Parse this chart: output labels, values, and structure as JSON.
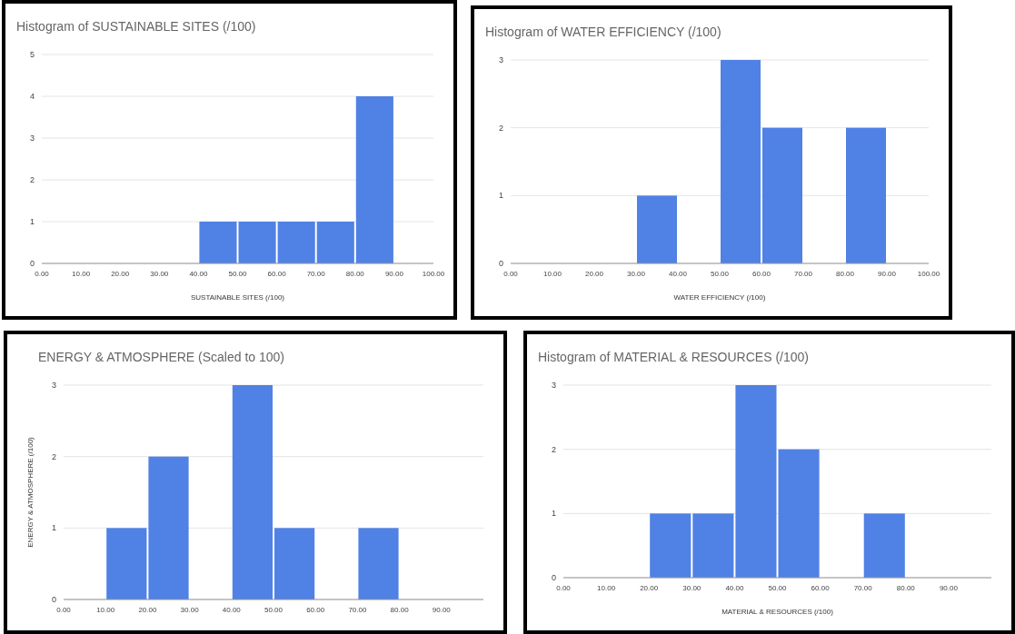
{
  "chart_data": [
    {
      "type": "histogram",
      "title": "Histogram of SUSTAINABLE SITES (/100)",
      "xlabel": "SUSTAINABLE SITES (/100)",
      "bins": [
        0,
        10,
        20,
        30,
        40,
        50,
        60,
        70,
        80,
        90,
        100
      ],
      "values": [
        0,
        0,
        0,
        0,
        1,
        1,
        1,
        1,
        4,
        0
      ],
      "color": "#5081e4",
      "xlim": [
        0,
        100
      ],
      "xticks": [
        {
          "value": 0,
          "label": "0.00"
        },
        {
          "value": 10,
          "label": "10.00"
        },
        {
          "value": 20,
          "label": "20.00"
        },
        {
          "value": 30,
          "label": "30.00"
        },
        {
          "value": 40,
          "label": "40.00"
        },
        {
          "value": 50,
          "label": "50.00"
        },
        {
          "value": 60,
          "label": "60.00"
        },
        {
          "value": 70,
          "label": "70.00"
        },
        {
          "value": 80,
          "label": "80.00"
        },
        {
          "value": 90,
          "label": "90.00"
        },
        {
          "value": 100,
          "label": "100.00"
        }
      ],
      "ylim": [
        0,
        5
      ],
      "yticks": [
        0,
        1,
        2,
        3,
        4,
        5
      ],
      "grid": "y"
    },
    {
      "type": "histogram",
      "title": "Histogram of WATER EFFICIENCY (/100)",
      "xlabel": "WATER EFFICIENCY (/100)",
      "bins": [
        0,
        10,
        20,
        30,
        40,
        50,
        60,
        70,
        80,
        90,
        100
      ],
      "values": [
        0,
        0,
        0,
        1,
        0,
        3,
        2,
        0,
        2,
        0
      ],
      "color": "#5081e4",
      "xlim": [
        0,
        100
      ],
      "xticks": [
        {
          "value": 0,
          "label": "0.00"
        },
        {
          "value": 10,
          "label": "10.00"
        },
        {
          "value": 20,
          "label": "20.00"
        },
        {
          "value": 30,
          "label": "30.00"
        },
        {
          "value": 40,
          "label": "40.00"
        },
        {
          "value": 50,
          "label": "50.00"
        },
        {
          "value": 60,
          "label": "60.00"
        },
        {
          "value": 70,
          "label": "70.00"
        },
        {
          "value": 80,
          "label": "80.00"
        },
        {
          "value": 90,
          "label": "90.00"
        },
        {
          "value": 100,
          "label": "100.00"
        }
      ],
      "ylim": [
        0,
        3
      ],
      "yticks": [
        0,
        1,
        2,
        3
      ],
      "grid": "y"
    },
    {
      "type": "histogram",
      "title": "ENERGY & ATMOSPHERE (Scaled to 100)",
      "ylabel": "ENERGY & ATMOSPHERE (/100)",
      "bins": [
        0,
        10,
        20,
        30,
        40,
        50,
        60,
        70,
        80,
        90,
        100
      ],
      "values": [
        0,
        1,
        2,
        0,
        3,
        1,
        0,
        1,
        0,
        0
      ],
      "color": "#5081e4",
      "xlim": [
        0,
        100
      ],
      "xticks": [
        {
          "value": 0,
          "label": "0.00"
        },
        {
          "value": 10,
          "label": "10.00"
        },
        {
          "value": 20,
          "label": "20.00"
        },
        {
          "value": 30,
          "label": "30.00"
        },
        {
          "value": 40,
          "label": "40.00"
        },
        {
          "value": 50,
          "label": "50.00"
        },
        {
          "value": 60,
          "label": "60.00"
        },
        {
          "value": 70,
          "label": "70.00"
        },
        {
          "value": 80,
          "label": "80.00"
        },
        {
          "value": 90,
          "label": "90.00"
        }
      ],
      "ylim": [
        0,
        3
      ],
      "yticks": [
        0,
        1,
        2,
        3
      ],
      "grid": "y"
    },
    {
      "type": "histogram",
      "title": "Histogram of MATERIAL & RESOURCES (/100)",
      "xlabel": "MATERIAL & RESOURCES (/100)",
      "bins": [
        0,
        10,
        20,
        30,
        40,
        50,
        60,
        70,
        80,
        90,
        100
      ],
      "values": [
        0,
        0,
        1,
        1,
        3,
        2,
        0,
        1,
        0,
        0
      ],
      "color": "#5081e4",
      "xlim": [
        0,
        100
      ],
      "xticks": [
        {
          "value": 0,
          "label": "0.00"
        },
        {
          "value": 10,
          "label": "10.00"
        },
        {
          "value": 20,
          "label": "20.00"
        },
        {
          "value": 30,
          "label": "30.00"
        },
        {
          "value": 40,
          "label": "40.00"
        },
        {
          "value": 50,
          "label": "50.00"
        },
        {
          "value": 60,
          "label": "60.00"
        },
        {
          "value": 70,
          "label": "70.00"
        },
        {
          "value": 80,
          "label": "80.00"
        },
        {
          "value": 90,
          "label": "90.00"
        }
      ],
      "ylim": [
        0,
        3
      ],
      "yticks": [
        0,
        1,
        2,
        3
      ],
      "grid": "y"
    }
  ]
}
